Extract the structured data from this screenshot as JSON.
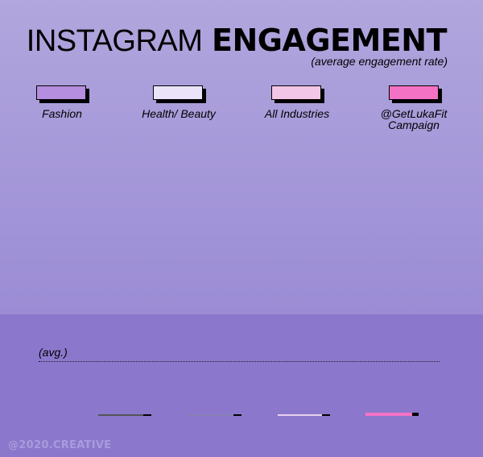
{
  "header": {
    "title_light": "INSTAGRAM",
    "title_bold": "ENGAGEMENT",
    "subtitle": "(average engagement rate)"
  },
  "legend": [
    {
      "label": "Fashion",
      "color": "#b68ee0"
    },
    {
      "label": "Health/ Beauty",
      "color": "#ebe4f8"
    },
    {
      "label": "All Industries",
      "color": "#f2c6e6"
    },
    {
      "label": "@GetLukaFit Campaign",
      "color": "#f472c4"
    }
  ],
  "avg_label": "(avg.)",
  "footer": "@2020.CREATIVE"
}
